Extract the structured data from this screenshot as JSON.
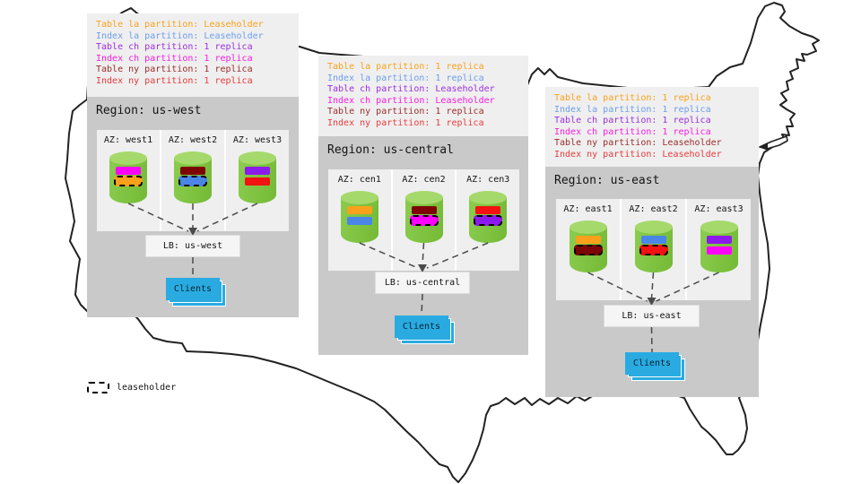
{
  "legend": {
    "label": "leaseholder"
  },
  "colors": {
    "region_box": "#c9c9c9",
    "panel_light": "#efefef",
    "clients_blue": "#29abe2",
    "cylinder_green": "#7dc242",
    "cylinder_top_green": "#a6d96b",
    "map_outline": "#222222"
  },
  "regions": [
    {
      "id": "us-west",
      "title": "Region: us-west",
      "lb_label": "LB: us-west",
      "clients_label": "Clients",
      "annotations": [
        {
          "text": "Table la partition: Leaseholder",
          "color": "#f9a11b"
        },
        {
          "text": "Index la partition: Leaseholder",
          "color": "#6d9eeb"
        },
        {
          "text": "Table ch partition: 1 replica",
          "color": "#9a2fe0"
        },
        {
          "text": "Index ch partition: 1 replica",
          "color": "#fb1ae4"
        },
        {
          "text": "Table ny partition: 1 replica",
          "color": "#9b2c2c"
        },
        {
          "text": "Index ny partition: 1 replica",
          "color": "#ea3a3a"
        }
      ],
      "azs": [
        {
          "label": "AZ: west1",
          "bars": [
            {
              "fill": "#ff00ff",
              "leaseholder": false
            },
            {
              "fill": "#f9a11b",
              "leaseholder": true
            }
          ]
        },
        {
          "label": "AZ: west2",
          "bars": [
            {
              "fill": "#7e0505",
              "leaseholder": false
            },
            {
              "fill": "#4a86e8",
              "leaseholder": true
            }
          ]
        },
        {
          "label": "AZ: west3",
          "bars": [
            {
              "fill": "#8c1aec",
              "leaseholder": false
            },
            {
              "fill": "#f31111",
              "leaseholder": false
            }
          ]
        }
      ]
    },
    {
      "id": "us-central",
      "title": "Region: us-central",
      "lb_label": "LB: us-central",
      "clients_label": "Clients",
      "annotations": [
        {
          "text": "Table la partition: 1 replica",
          "color": "#f9a11b"
        },
        {
          "text": "Index la partition: 1 replica",
          "color": "#6d9eeb"
        },
        {
          "text": "Table ch partition: Leaseholder",
          "color": "#9a2fe0"
        },
        {
          "text": "Index ch partition: Leaseholder",
          "color": "#fb1ae4"
        },
        {
          "text": "Table ny partition: 1 replica",
          "color": "#9b2c2c"
        },
        {
          "text": "Index ny partition: 1 replica",
          "color": "#ea3a3a"
        }
      ],
      "azs": [
        {
          "label": "AZ: cen1",
          "bars": [
            {
              "fill": "#f9a11b",
              "leaseholder": false
            },
            {
              "fill": "#4a86e8",
              "leaseholder": false
            }
          ]
        },
        {
          "label": "AZ: cen2",
          "bars": [
            {
              "fill": "#7e0505",
              "leaseholder": false
            },
            {
              "fill": "#ff00ff",
              "leaseholder": true
            }
          ]
        },
        {
          "label": "AZ: cen3",
          "bars": [
            {
              "fill": "#f31111",
              "leaseholder": false
            },
            {
              "fill": "#8c1aec",
              "leaseholder": true
            }
          ]
        }
      ]
    },
    {
      "id": "us-east",
      "title": "Region: us-east",
      "lb_label": "LB: us-east",
      "clients_label": "Clients",
      "annotations": [
        {
          "text": "Table la partition: 1 replica",
          "color": "#f9a11b"
        },
        {
          "text": "Index la partition: 1 replica",
          "color": "#6d9eeb"
        },
        {
          "text": "Table ch partition: 1 replica",
          "color": "#9a2fe0"
        },
        {
          "text": "Index ch partition: 1 replica",
          "color": "#fb1ae4"
        },
        {
          "text": "Table ny partition: Leaseholder",
          "color": "#9b2c2c"
        },
        {
          "text": "Index ny partition: Leaseholder",
          "color": "#ea3a3a"
        }
      ],
      "azs": [
        {
          "label": "AZ: east1",
          "bars": [
            {
              "fill": "#f9a11b",
              "leaseholder": false
            },
            {
              "fill": "#7e0505",
              "leaseholder": true
            }
          ]
        },
        {
          "label": "AZ: east2",
          "bars": [
            {
              "fill": "#4a86e8",
              "leaseholder": false
            },
            {
              "fill": "#f31111",
              "leaseholder": true
            }
          ]
        },
        {
          "label": "AZ: east3",
          "bars": [
            {
              "fill": "#8c1aec",
              "leaseholder": false
            },
            {
              "fill": "#ff00ff",
              "leaseholder": false
            }
          ]
        }
      ]
    }
  ]
}
